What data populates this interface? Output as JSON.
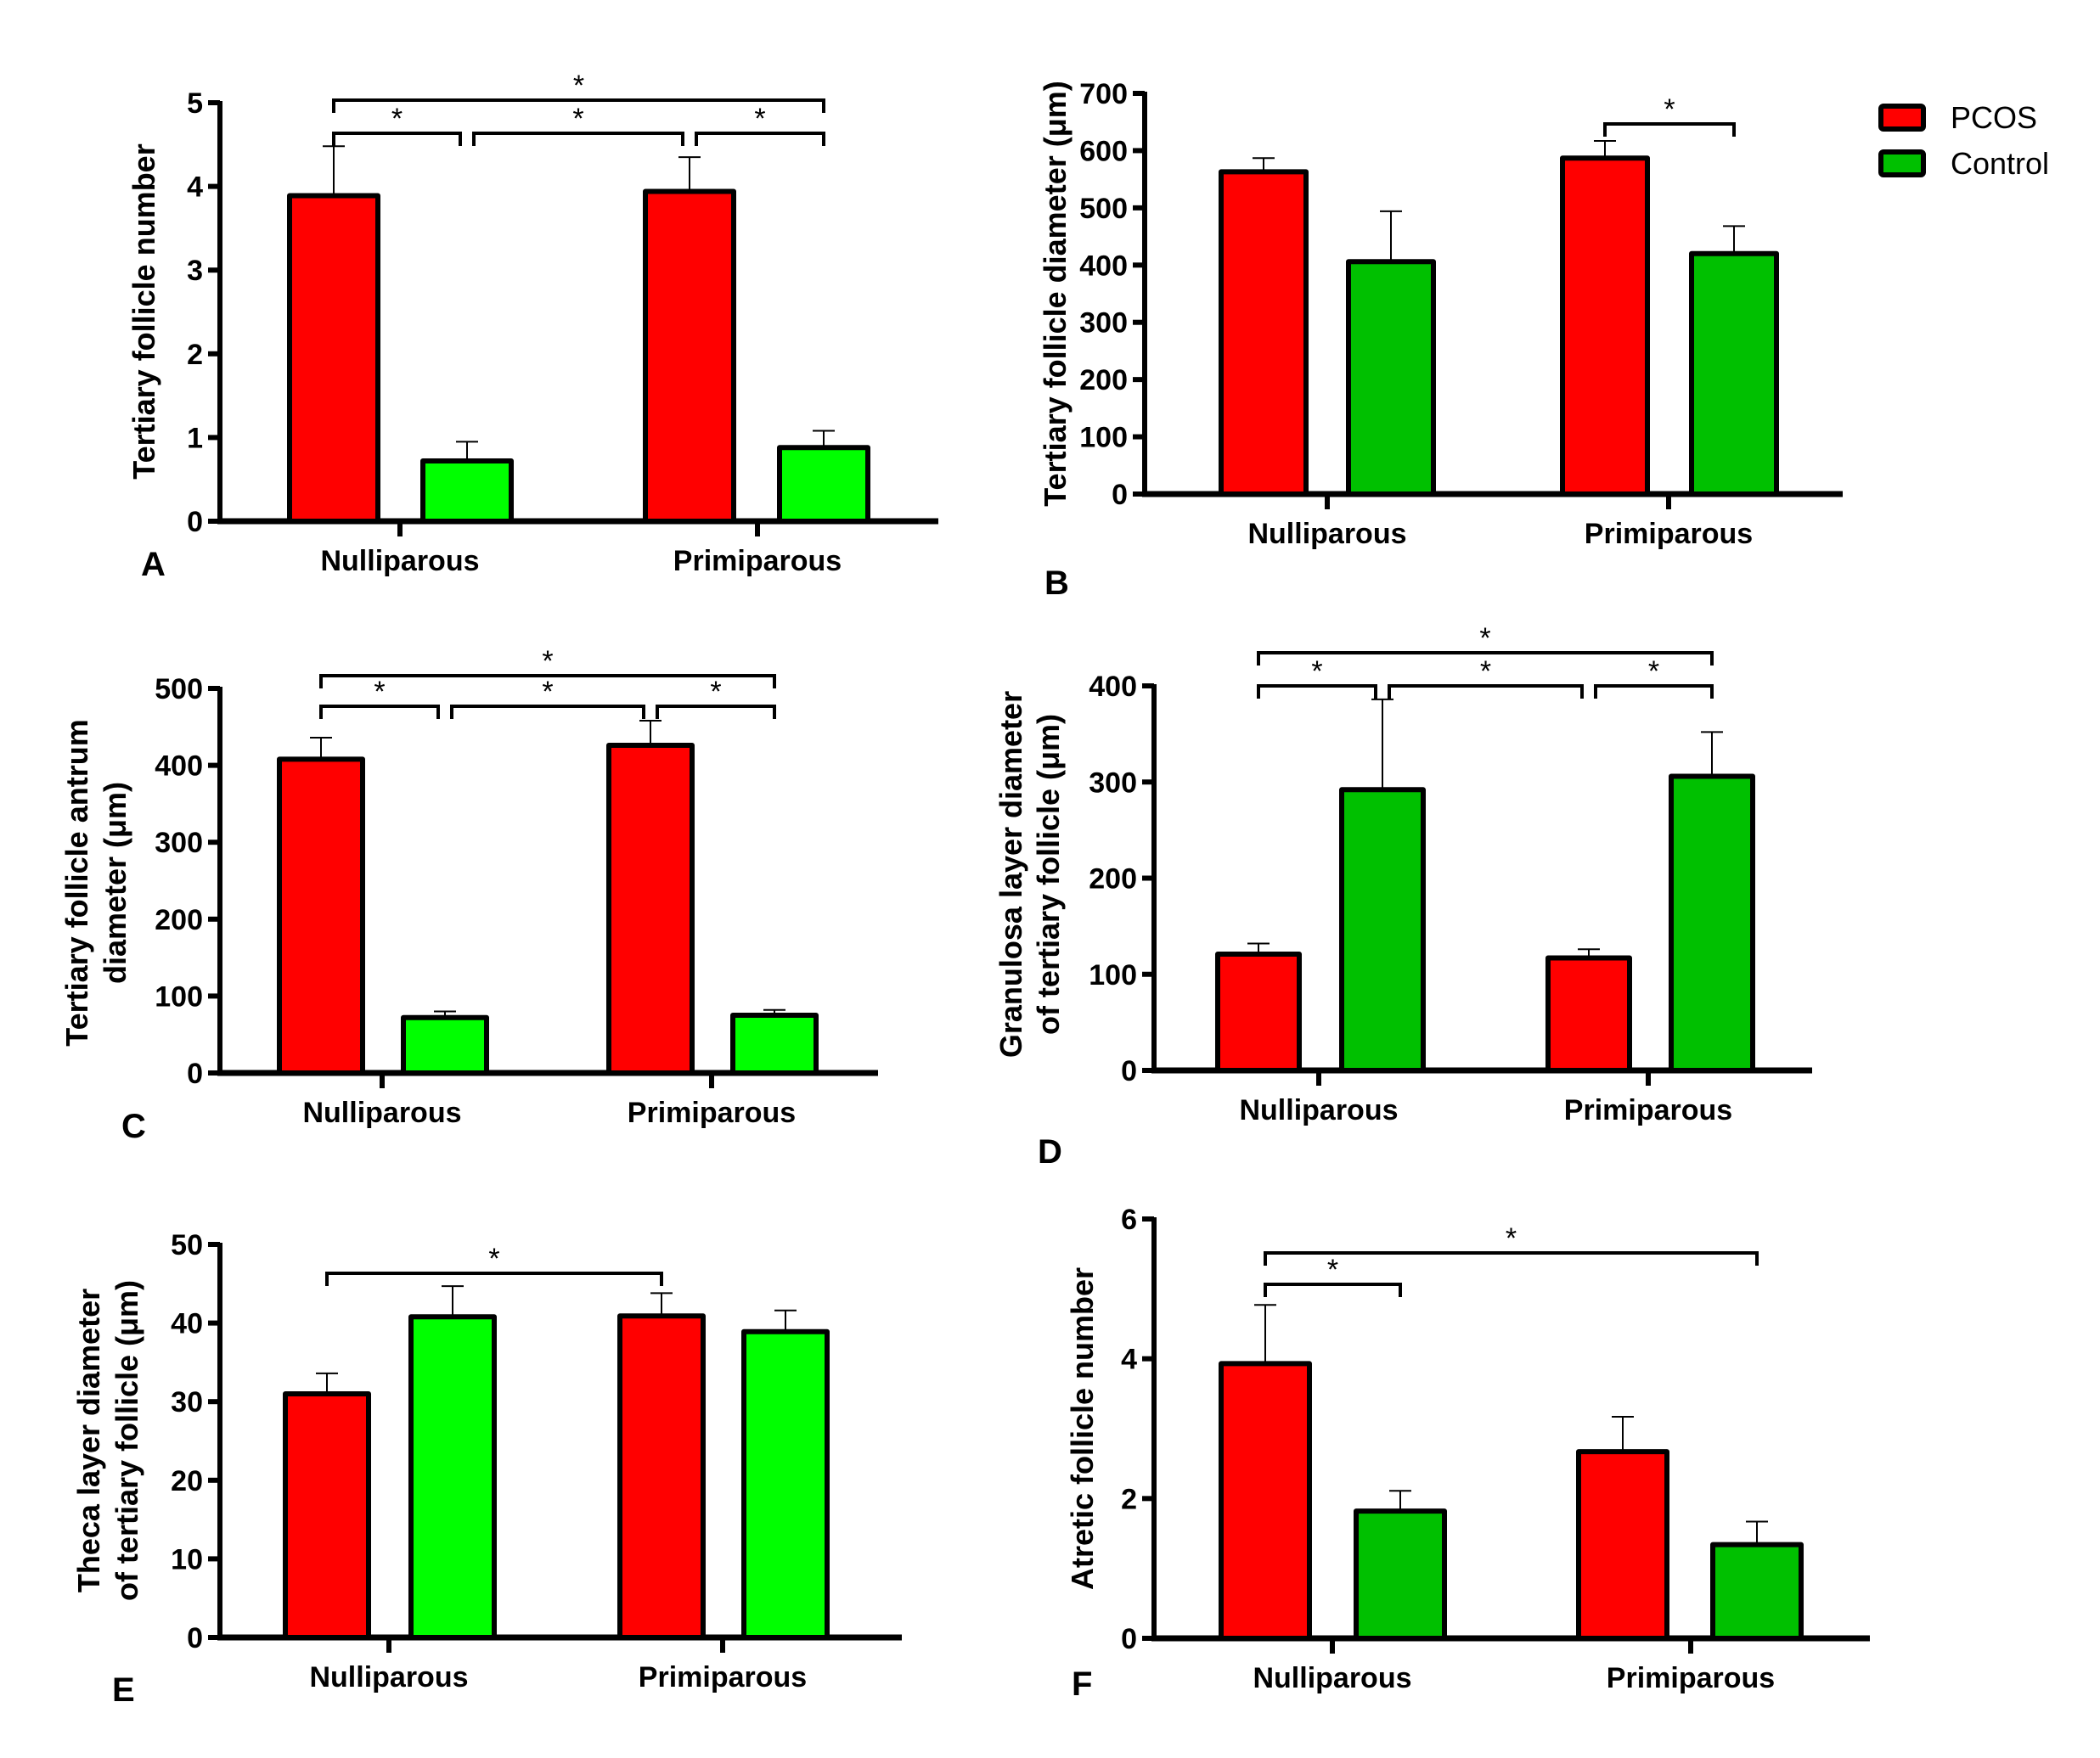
{
  "colors": {
    "pcos": "#ff0000",
    "control_bright": "#00ff00",
    "control_dark": "#00c000",
    "outline": "#000000"
  },
  "legend": {
    "items": [
      {
        "label": "PCOS",
        "color": "#ff0000"
      },
      {
        "label": "Control",
        "color": "#00c000"
      }
    ],
    "placement": "top-right"
  },
  "chart_data": [
    {
      "panel": "A",
      "type": "bar",
      "title": "",
      "ylabel": [
        "Tertiary follicle number"
      ],
      "xlabel": "",
      "categories": [
        "Nulliparous",
        "Primiparous"
      ],
      "ylim": [
        0,
        5
      ],
      "yticks": [
        "0",
        "1",
        "2",
        "3",
        "4",
        "5"
      ],
      "tick_values": [
        0,
        1,
        2,
        3,
        4,
        5
      ],
      "control_color": "#00ff00",
      "series": [
        {
          "name": "PCOS",
          "values": [
            3.89,
            3.94
          ],
          "error_upper": [
            4.48,
            4.35
          ]
        },
        {
          "name": "Control",
          "values": [
            0.72,
            0.88
          ],
          "error_upper": [
            0.95,
            1.08
          ]
        }
      ],
      "significance": [
        {
          "from": "Nulliparous PCOS",
          "to": "Nulliparous Control",
          "label": "*",
          "level": 1
        },
        {
          "from": "Nulliparous Control",
          "to": "Primiparous PCOS",
          "label": "*",
          "level": 1
        },
        {
          "from": "Primiparous PCOS",
          "to": "Primiparous Control",
          "label": "*",
          "level": 1
        },
        {
          "from": "Nulliparous PCOS",
          "to": "Primiparous Control",
          "label": "*",
          "level": 2
        }
      ]
    },
    {
      "panel": "B",
      "type": "bar",
      "title": "",
      "ylabel": [
        "Tertiary follicle diameter (μm)"
      ],
      "xlabel": "",
      "categories": [
        "Nulliparous",
        "Primiparous"
      ],
      "ylim": [
        0,
        700
      ],
      "yticks": [
        "0",
        "100",
        "200",
        "300",
        "400",
        "500",
        "600",
        "700"
      ],
      "tick_values": [
        0,
        100,
        200,
        300,
        400,
        500,
        600,
        700
      ],
      "control_color": "#00c000",
      "series": [
        {
          "name": "PCOS",
          "values": [
            563,
            587
          ],
          "error_upper": [
            587,
            617
          ]
        },
        {
          "name": "Control",
          "values": [
            406,
            420
          ],
          "error_upper": [
            494,
            468
          ]
        }
      ],
      "significance": [
        {
          "from": "Primiparous PCOS",
          "to": "Primiparous Control",
          "label": "*",
          "level": 1
        }
      ]
    },
    {
      "panel": "C",
      "type": "bar",
      "title": "",
      "ylabel": [
        "Tertiary follicle antrum",
        "diameter (μm)"
      ],
      "xlabel": "",
      "categories": [
        "Nulliparous",
        "Primiparous"
      ],
      "ylim": [
        0,
        500
      ],
      "yticks": [
        "0",
        "100",
        "200",
        "300",
        "400",
        "500"
      ],
      "tick_values": [
        0,
        100,
        200,
        300,
        400,
        500
      ],
      "control_color": "#00ff00",
      "series": [
        {
          "name": "PCOS",
          "values": [
            408,
            426
          ],
          "error_upper": [
            436,
            458
          ]
        },
        {
          "name": "Control",
          "values": [
            72,
            75
          ],
          "error_upper": [
            80,
            82
          ]
        }
      ],
      "significance": [
        {
          "from": "Nulliparous PCOS",
          "to": "Nulliparous Control",
          "label": "*",
          "level": 1
        },
        {
          "from": "Nulliparous Control",
          "to": "Primiparous PCOS",
          "label": "*",
          "level": 1
        },
        {
          "from": "Primiparous PCOS",
          "to": "Primiparous Control",
          "label": "*",
          "level": 1
        },
        {
          "from": "Nulliparous PCOS",
          "to": "Primiparous Control",
          "label": "*",
          "level": 2
        }
      ]
    },
    {
      "panel": "D",
      "type": "bar",
      "title": "",
      "ylabel": [
        "Granulosa layer diameter",
        "of tertiary follicle (μm)"
      ],
      "xlabel": "",
      "categories": [
        "Nulliparous",
        "Primiparous"
      ],
      "ylim": [
        0,
        400
      ],
      "yticks": [
        "0",
        "100",
        "200",
        "300",
        "400"
      ],
      "tick_values": [
        0,
        100,
        200,
        300,
        400
      ],
      "control_color": "#00c000",
      "series": [
        {
          "name": "PCOS",
          "values": [
            121,
            117
          ],
          "error_upper": [
            132,
            126
          ]
        },
        {
          "name": "Control",
          "values": [
            292,
            306
          ],
          "error_upper": [
            386,
            352
          ]
        }
      ],
      "significance": [
        {
          "from": "Nulliparous PCOS",
          "to": "Nulliparous Control",
          "label": "*",
          "level": 1
        },
        {
          "from": "Nulliparous Control",
          "to": "Primiparous PCOS",
          "label": "*",
          "level": 1
        },
        {
          "from": "Primiparous PCOS",
          "to": "Primiparous Control",
          "label": "*",
          "level": 1
        },
        {
          "from": "Nulliparous PCOS",
          "to": "Primiparous Control",
          "label": "*",
          "level": 2
        }
      ]
    },
    {
      "panel": "E",
      "type": "bar",
      "title": "",
      "ylabel": [
        "Theca layer diameter",
        "of tertiary follicle (μm)"
      ],
      "xlabel": "",
      "categories": [
        "Nulliparous",
        "Primiparous"
      ],
      "ylim": [
        0,
        50
      ],
      "yticks": [
        "0",
        "10",
        "20",
        "30",
        "40",
        "50"
      ],
      "tick_values": [
        0,
        10,
        20,
        30,
        40,
        50
      ],
      "control_color": "#00ff00",
      "series": [
        {
          "name": "PCOS",
          "values": [
            31.0,
            40.9
          ],
          "error_upper": [
            33.6,
            43.8
          ]
        },
        {
          "name": "Control",
          "values": [
            40.8,
            38.9
          ],
          "error_upper": [
            44.7,
            41.6
          ]
        }
      ],
      "significance": [
        {
          "from": "Nulliparous PCOS",
          "to": "Primiparous PCOS",
          "label": "*",
          "level": 1
        }
      ]
    },
    {
      "panel": "F",
      "type": "bar",
      "title": "",
      "ylabel": [
        "Atretic follicle number"
      ],
      "xlabel": "",
      "categories": [
        "Nulliparous",
        "Primiparous"
      ],
      "ylim": [
        0,
        6
      ],
      "yticks": [
        "0",
        "2",
        "4",
        "6"
      ],
      "tick_values": [
        0,
        2,
        4,
        6
      ],
      "control_color": "#00c000",
      "series": [
        {
          "name": "PCOS",
          "values": [
            3.93,
            2.67
          ],
          "error_upper": [
            4.77,
            3.17
          ]
        },
        {
          "name": "Control",
          "values": [
            1.82,
            1.34
          ],
          "error_upper": [
            2.11,
            1.67
          ]
        }
      ],
      "significance": [
        {
          "from": "Nulliparous PCOS",
          "to": "Nulliparous Control",
          "label": "*",
          "level": 1
        },
        {
          "from": "Nulliparous PCOS",
          "to": "Primiparous Control",
          "label": "*",
          "level": 2
        }
      ]
    }
  ]
}
